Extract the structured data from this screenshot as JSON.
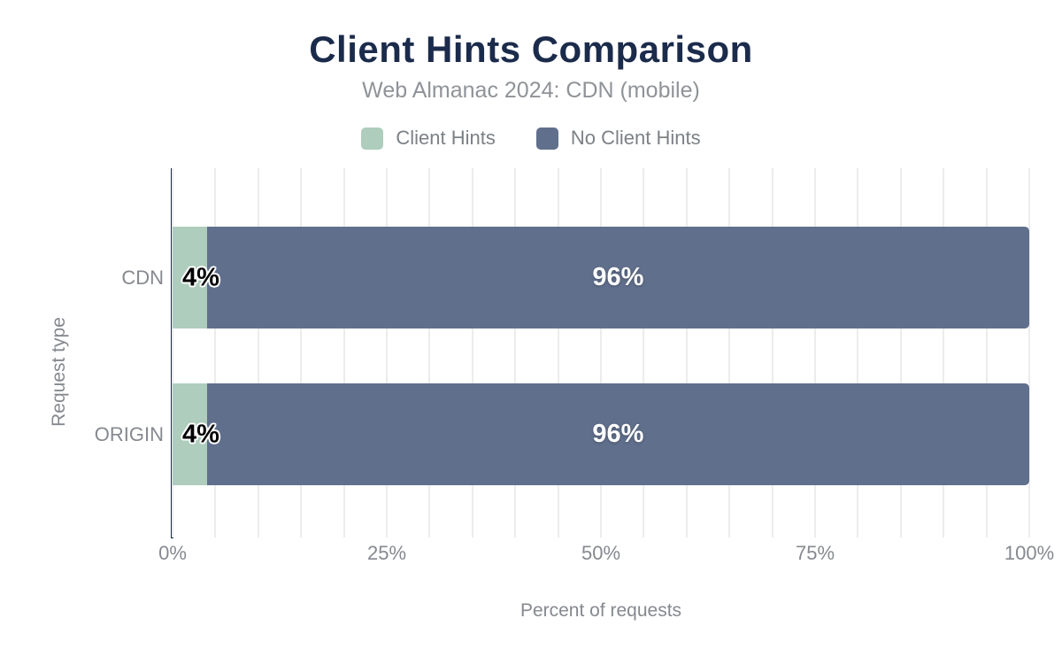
{
  "header": {
    "title": "Client Hints Comparison",
    "subtitle": "Web Almanac 2024: CDN (mobile)"
  },
  "colors": {
    "title_navy": "#1b2b4b",
    "axis_navy": "#1b2b4b",
    "gridline": "#ececec",
    "label_gray": "#85898f",
    "client_hints_green": "#aecdbc",
    "no_client_hints_blue": "#606f8c"
  },
  "chart_data": {
    "type": "bar",
    "orientation": "horizontal",
    "stacked": true,
    "title": "Client Hints Comparison",
    "subtitle": "Web Almanac 2024: CDN (mobile)",
    "categories": [
      "CDN",
      "ORIGIN"
    ],
    "series": [
      {
        "name": "Client Hints",
        "color": "#aecdbc",
        "values": [
          4,
          4
        ],
        "labels": [
          "4%",
          "4%"
        ]
      },
      {
        "name": "No Client Hints",
        "color": "#606f8c",
        "values": [
          96,
          96
        ],
        "labels": [
          "96%",
          "96%"
        ]
      }
    ],
    "xlabel": "Percent of requests",
    "ylabel": "Request type",
    "xlim": [
      0,
      100
    ],
    "xticks": [
      {
        "value": 0,
        "label": "0%"
      },
      {
        "value": 25,
        "label": "25%"
      },
      {
        "value": 50,
        "label": "50%"
      },
      {
        "value": 75,
        "label": "75%"
      },
      {
        "value": 100,
        "label": "100%"
      }
    ],
    "grid": {
      "minor_interval": 5,
      "on": true
    },
    "legend_position": "top"
  }
}
